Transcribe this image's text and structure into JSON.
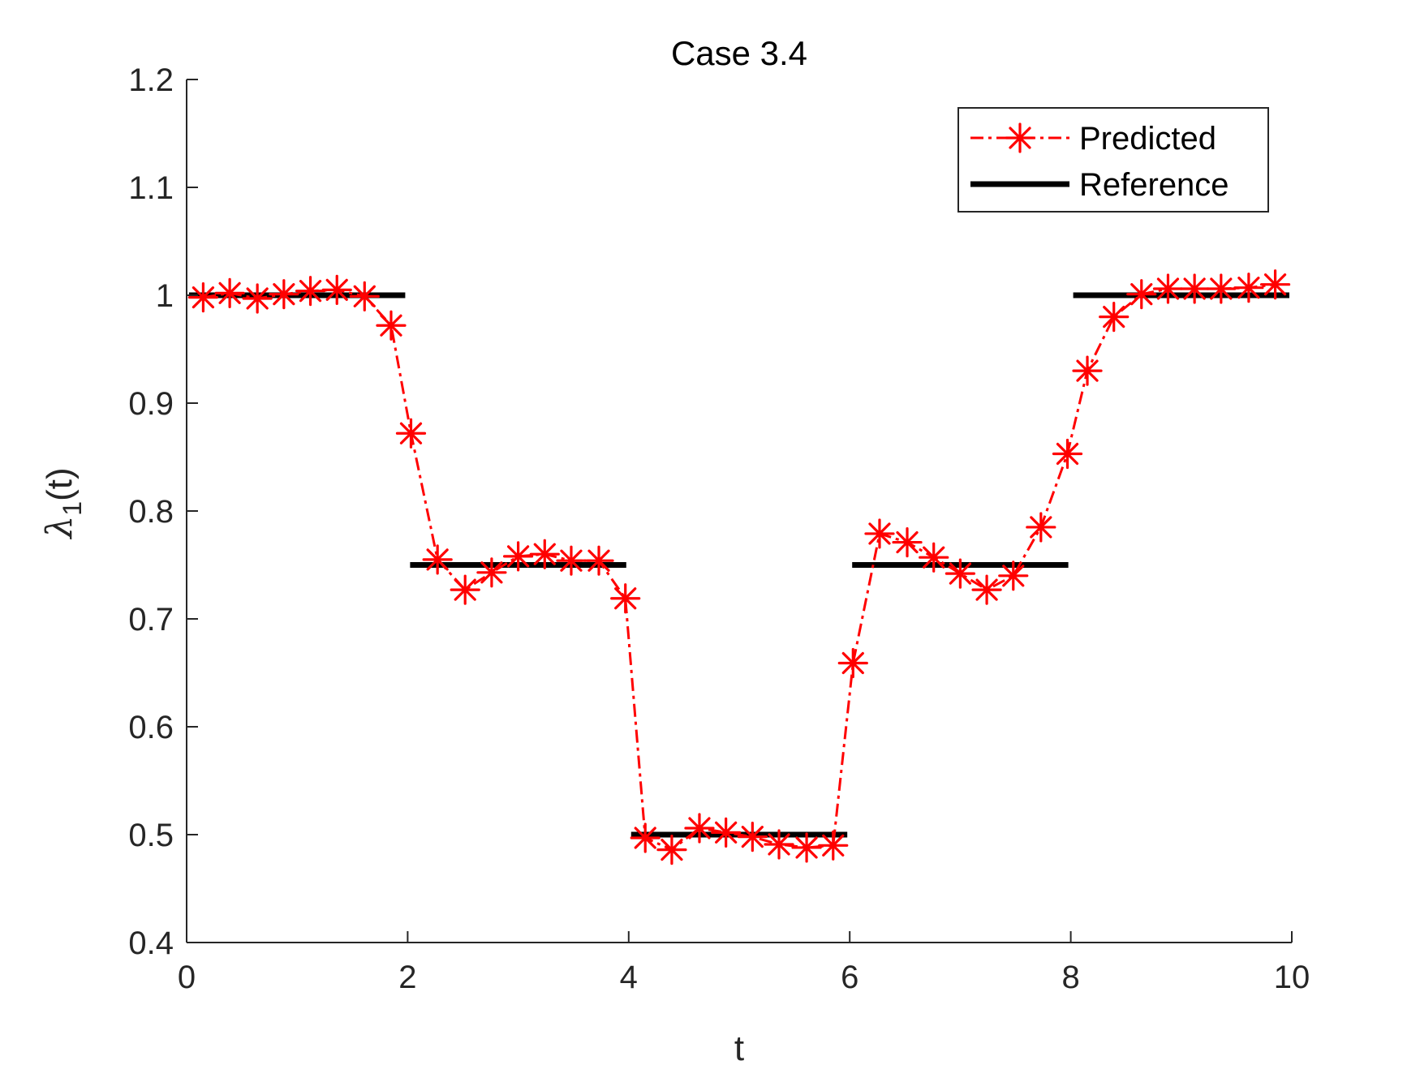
{
  "chart_data": {
    "type": "line",
    "title": "Case 3.4",
    "xlabel": "t",
    "ylabel": {
      "symbol": "λ",
      "subscript": "1",
      "suffix": "(t)"
    },
    "xlim": [
      0,
      10
    ],
    "ylim": [
      0.4,
      1.2
    ],
    "xticks": [
      0,
      2,
      4,
      6,
      8,
      10
    ],
    "xtick_labels": [
      "0",
      "2",
      "4",
      "6",
      "8",
      "10"
    ],
    "yticks": [
      0.4,
      0.5,
      0.6,
      0.7,
      0.8,
      0.9,
      1.0,
      1.1,
      1.2
    ],
    "ytick_labels": [
      "0.4",
      "0.5",
      "0.6",
      "0.7",
      "0.8",
      "0.9",
      "1",
      "1.1",
      "1.2"
    ],
    "grid": false,
    "legend_position": "top-right",
    "series": [
      {
        "name": "Predicted",
        "style": "dash-dot with asterisk markers",
        "color": "#ff0000",
        "x": [
          0.15,
          0.39,
          0.64,
          0.88,
          1.12,
          1.36,
          1.61,
          1.85,
          2.03,
          2.27,
          2.52,
          2.76,
          3.0,
          3.24,
          3.48,
          3.73,
          3.97,
          4.15,
          4.39,
          4.64,
          4.88,
          5.12,
          5.36,
          5.61,
          5.85,
          6.03,
          6.27,
          6.52,
          6.76,
          7.0,
          7.24,
          7.48,
          7.73,
          7.97,
          8.15,
          8.39,
          8.64,
          8.88,
          9.12,
          9.36,
          9.61,
          9.85
        ],
        "y": [
          0.998,
          1.002,
          0.997,
          1.001,
          1.004,
          1.005,
          0.999,
          0.972,
          0.872,
          0.755,
          0.727,
          0.743,
          0.758,
          0.76,
          0.754,
          0.754,
          0.719,
          0.497,
          0.486,
          0.506,
          0.502,
          0.498,
          0.491,
          0.488,
          0.49,
          0.659,
          0.779,
          0.771,
          0.757,
          0.742,
          0.727,
          0.74,
          0.785,
          0.853,
          0.93,
          0.98,
          1.001,
          1.006,
          1.006,
          1.006,
          1.007,
          1.01
        ]
      },
      {
        "name": "Reference",
        "style": "solid thick",
        "color": "#000000",
        "segments": [
          {
            "x": [
              0,
              2
            ],
            "y": 1.0
          },
          {
            "x": [
              2,
              4
            ],
            "y": 0.75
          },
          {
            "x": [
              4,
              6
            ],
            "y": 0.5
          },
          {
            "x": [
              6,
              8
            ],
            "y": 0.75
          },
          {
            "x": [
              8,
              10
            ],
            "y": 1.0
          }
        ]
      }
    ]
  }
}
